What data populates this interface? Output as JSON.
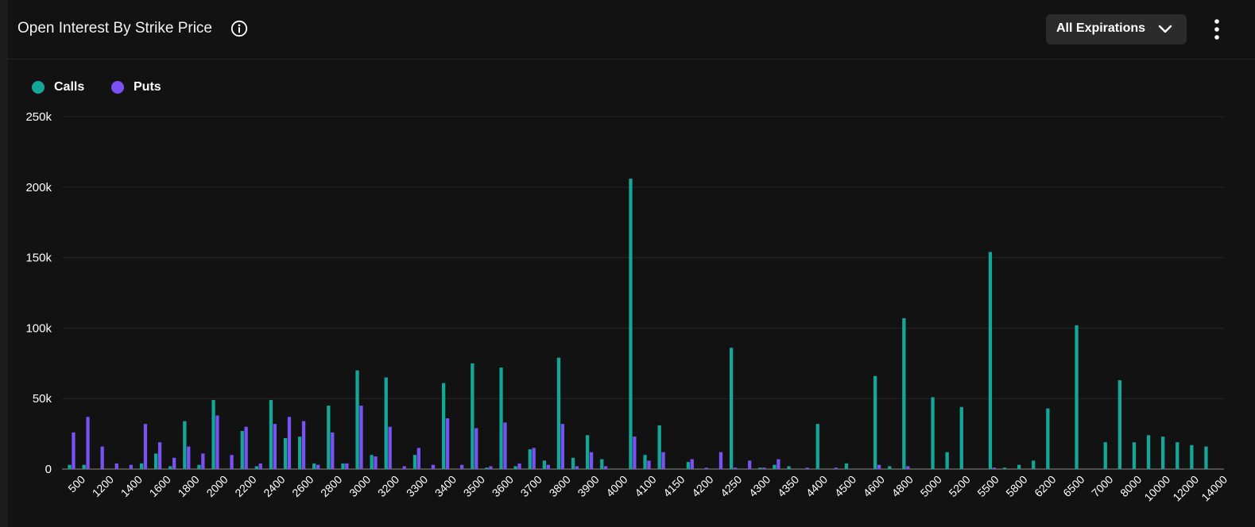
{
  "header": {
    "title": "Open Interest By Strike Price",
    "dropdown_label": "All Expirations"
  },
  "icons": {
    "info": "info-icon",
    "dropdown": "chevron-down-icon",
    "menu": "more-vertical-icon"
  },
  "colors": {
    "calls": "#14a697",
    "puts": "#7a52f4",
    "background": "#121212",
    "grid": "#242424",
    "text": "#ffffff"
  },
  "chart_data": {
    "type": "bar",
    "title": "Open Interest By Strike Price",
    "ylim": [
      0,
      250000
    ],
    "yticks": [
      "0",
      "50k",
      "100k",
      "150k",
      "200k",
      "250k"
    ],
    "xtick_labels": [
      "500",
      "1200",
      "1400",
      "1600",
      "1800",
      "2000",
      "2200",
      "2400",
      "2600",
      "2800",
      "3000",
      "3200",
      "3300",
      "3400",
      "3500",
      "3600",
      "3700",
      "3800",
      "3900",
      "4000",
      "4100",
      "4150",
      "4200",
      "4250",
      "4300",
      "4350",
      "4400",
      "4500",
      "4600",
      "4800",
      "5000",
      "5200",
      "5500",
      "5800",
      "6200",
      "6500",
      "7000",
      "8000",
      "10000",
      "12000",
      "14000"
    ],
    "legend_position": "top-left",
    "grid": true,
    "series": [
      {
        "name": "Calls",
        "values": [
          3000,
          3000,
          0,
          0,
          0,
          4000,
          11000,
          2000,
          34000,
          3000,
          49000,
          0,
          27000,
          2000,
          49000,
          22000,
          23000,
          4000,
          45000,
          4000,
          70000,
          10000,
          65000,
          0,
          10000,
          0,
          61000,
          0,
          75000,
          1000,
          72000,
          2000,
          14000,
          6000,
          79000,
          8000,
          24000,
          7000,
          0,
          206000,
          10000,
          31000,
          0,
          5000,
          0,
          0,
          86000,
          0,
          1000,
          3000,
          2000,
          0,
          32000,
          0,
          4000,
          0,
          66000,
          2000,
          107000,
          0,
          51000,
          12000,
          44000,
          0,
          154000,
          1000,
          3000,
          6000,
          43000,
          0,
          102000,
          0,
          19000,
          63000,
          19000,
          24000,
          23000,
          19000,
          17000,
          16000
        ]
      },
      {
        "name": "Puts",
        "values": [
          26000,
          37000,
          16000,
          4000,
          3000,
          32000,
          19000,
          8000,
          16000,
          11000,
          38000,
          10000,
          30000,
          4000,
          32000,
          37000,
          34000,
          3000,
          26000,
          4000,
          45000,
          9000,
          30000,
          2000,
          15000,
          3000,
          36000,
          3000,
          29000,
          2000,
          33000,
          4000,
          15000,
          3000,
          32000,
          2000,
          12000,
          2000,
          0,
          23000,
          6000,
          12000,
          0,
          7000,
          1000,
          12000,
          1000,
          6000,
          1000,
          7000,
          0,
          1000,
          0,
          1000,
          0,
          0,
          3000,
          0,
          2000,
          0,
          0,
          0,
          0,
          0,
          1000,
          0,
          0,
          0,
          0,
          0,
          0,
          0,
          0,
          0,
          0,
          0,
          0,
          0,
          0,
          0
        ]
      }
    ]
  }
}
